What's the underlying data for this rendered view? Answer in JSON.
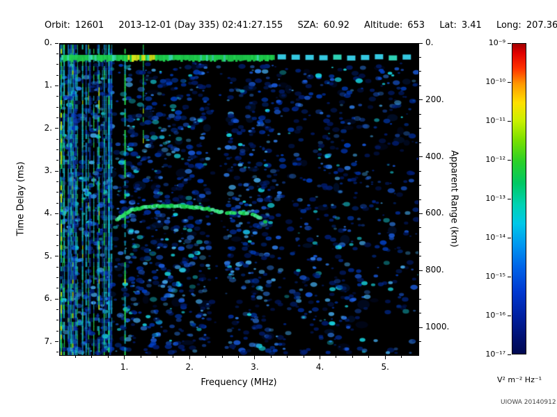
{
  "header": {
    "fields": [
      {
        "label": "Orbit:",
        "value": "12601"
      },
      {
        "label": "",
        "value": "2013-12-01 (Day 335) 02:41:27.155"
      },
      {
        "label": "SZA:",
        "value": "60.92"
      },
      {
        "label": "Altitude:",
        "value": "653"
      },
      {
        "label": "Lat:",
        "value": "3.41"
      },
      {
        "label": "Long:",
        "value": "207.36"
      }
    ]
  },
  "credit": "UIOWA 20140912",
  "chart_data": {
    "type": "heatmap",
    "title": "",
    "xlabel": "Frequency (MHz)",
    "ylabel_left": "Time Delay (ms)",
    "ylabel_right": "Apparent Range (km)",
    "xlim": [
      0,
      5.5
    ],
    "ylim_ms": [
      0,
      7.3
    ],
    "ylim_km": [
      0,
      1095
    ],
    "grid": false,
    "x_ticks": [
      {
        "v": 1,
        "label": "1."
      },
      {
        "v": 2,
        "label": "2."
      },
      {
        "v": 3,
        "label": "3."
      },
      {
        "v": 4,
        "label": "4."
      },
      {
        "v": 5,
        "label": "5."
      }
    ],
    "x_minor_step": 0.25,
    "y_ticks_ms": [
      {
        "v": 0,
        "label": "0."
      },
      {
        "v": 1,
        "label": "1."
      },
      {
        "v": 2,
        "label": "2."
      },
      {
        "v": 3,
        "label": "3."
      },
      {
        "v": 4,
        "label": "4."
      },
      {
        "v": 5,
        "label": "5."
      },
      {
        "v": 6,
        "label": "6."
      },
      {
        "v": 7,
        "label": "7."
      }
    ],
    "y_minor_step_ms": 0.25,
    "y_ticks_km": [
      {
        "v": 0,
        "label": "0."
      },
      {
        "v": 200,
        "label": "200."
      },
      {
        "v": 400,
        "label": "400."
      },
      {
        "v": 600,
        "label": "600."
      },
      {
        "v": 800,
        "label": "800."
      },
      {
        "v": 1000,
        "label": "1000."
      }
    ],
    "y_minor_step_km": 50,
    "colorbar": {
      "scale": "log",
      "min": 1e-17,
      "max": 1e-09,
      "tick_labels": [
        "10⁻⁹",
        "10⁻¹⁰",
        "10⁻¹¹",
        "10⁻¹²",
        "10⁻¹³",
        "10⁻¹⁴",
        "10⁻¹⁵",
        "10⁻¹⁶",
        "10⁻¹⁷"
      ],
      "units": "V² m⁻² Hz⁻¹",
      "colormap": "rainbow",
      "stops": [
        {
          "p": 0.0,
          "c": "#a00000"
        },
        {
          "p": 0.03,
          "c": "#e00000"
        },
        {
          "p": 0.08,
          "c": "#ff3300"
        },
        {
          "p": 0.13,
          "c": "#ff9900"
        },
        {
          "p": 0.19,
          "c": "#ffe000"
        },
        {
          "p": 0.25,
          "c": "#c8f000"
        },
        {
          "p": 0.31,
          "c": "#7ae000"
        },
        {
          "p": 0.38,
          "c": "#2ad028"
        },
        {
          "p": 0.45,
          "c": "#00c864"
        },
        {
          "p": 0.52,
          "c": "#00d2b4"
        },
        {
          "p": 0.58,
          "c": "#00c8e8"
        },
        {
          "p": 0.65,
          "c": "#0096f0"
        },
        {
          "p": 0.72,
          "c": "#0064e8"
        },
        {
          "p": 0.8,
          "c": "#0038d0"
        },
        {
          "p": 0.88,
          "c": "#0020a0"
        },
        {
          "p": 0.95,
          "c": "#001070"
        },
        {
          "p": 1.0,
          "c": "#000850"
        }
      ]
    },
    "features_note": "Radar sounder ionogram: strong transmitter pulse band at ~0.33 ms delay (solid to ~3.3 MHz, dashed beyond); dense vertical plasma-oscillation stripes below ~0.8 MHz; horizontal ionospheric echo trace at ~3.8-4.2 ms between ~0.9 and 3.2 MHz; diffuse blue noise elsewhere; quiet dark bands near 2.4 and 3.5 MHz.",
    "features": {
      "noise": {
        "count": 3400,
        "density": [
          {
            "f0": 0.0,
            "f1": 0.78,
            "p": 0.9
          },
          {
            "f0": 0.78,
            "f1": 0.95,
            "p": 0.5
          },
          {
            "f0": 0.95,
            "f1": 2.3,
            "p": 0.85
          },
          {
            "f0": 2.3,
            "f1": 2.55,
            "p": 0.12
          },
          {
            "f0": 2.55,
            "f1": 3.25,
            "p": 0.75
          },
          {
            "f0": 3.25,
            "f1": 3.45,
            "p": 0.5
          },
          {
            "f0": 3.45,
            "f1": 3.62,
            "p": 0.22
          },
          {
            "f0": 3.62,
            "f1": 4.6,
            "p": 0.5
          },
          {
            "f0": 4.6,
            "f1": 5.5,
            "p": 0.33
          }
        ],
        "colors": [
          "#001d72",
          "#002e9e",
          "#0040c4",
          "#1a5ce0",
          "#2f80ee",
          "#45aef0",
          "#18dce8"
        ]
      },
      "stripes": {
        "random_count": 26,
        "random_fmax": 0.8,
        "bright": [
          {
            "f": 0.02,
            "b": 1.0
          },
          {
            "f": 0.07,
            "b": 0.9
          },
          {
            "f": 0.13,
            "b": 0.85
          },
          {
            "f": 0.2,
            "b": 0.95
          },
          {
            "f": 0.27,
            "b": 0.8
          },
          {
            "f": 0.35,
            "b": 0.9
          },
          {
            "f": 0.44,
            "b": 0.85
          },
          {
            "f": 0.52,
            "b": 0.75
          },
          {
            "f": 0.6,
            "b": 0.9
          },
          {
            "f": 0.68,
            "b": 0.8
          },
          {
            "f": 0.76,
            "b": 0.7
          },
          {
            "f": 1.0,
            "b": 0.85
          },
          {
            "f": 1.28,
            "b": 0.9,
            "tmax": 2.4
          }
        ],
        "colors": [
          "#0f3ec0",
          "#14b4c8",
          "#27dc50",
          "#b4e414"
        ]
      },
      "tx_line": {
        "t": 0.33,
        "half_ms": 0.07,
        "solid_f1": 3.28,
        "dash_f1": 5.46,
        "dash_ms": 0.128,
        "gap_ms": 0.085,
        "base": "#1ed24e",
        "alt": "#38e0b0",
        "yellow_f0": 1.0,
        "yellow_f1": 1.45,
        "yellow": "#d8e81a",
        "dash_color": "#2ed2b4",
        "dash_color2": "#35c8e0"
      },
      "echo_trace": {
        "points": [
          [
            0.88,
            4.12
          ],
          [
            0.98,
            4.0
          ],
          [
            1.1,
            3.9
          ],
          [
            1.3,
            3.83
          ],
          [
            1.55,
            3.8
          ],
          [
            1.8,
            3.8
          ],
          [
            2.05,
            3.83
          ],
          [
            2.3,
            3.88
          ],
          [
            2.5,
            3.95
          ],
          [
            2.7,
            3.96
          ],
          [
            2.85,
            3.98
          ],
          [
            3.0,
            4.03
          ],
          [
            3.12,
            4.12
          ],
          [
            3.18,
            4.22
          ]
        ],
        "dash_after_f": 2.35,
        "colors": [
          "#17c248",
          "#2ee06a",
          "#4fe0a0"
        ]
      }
    }
  }
}
